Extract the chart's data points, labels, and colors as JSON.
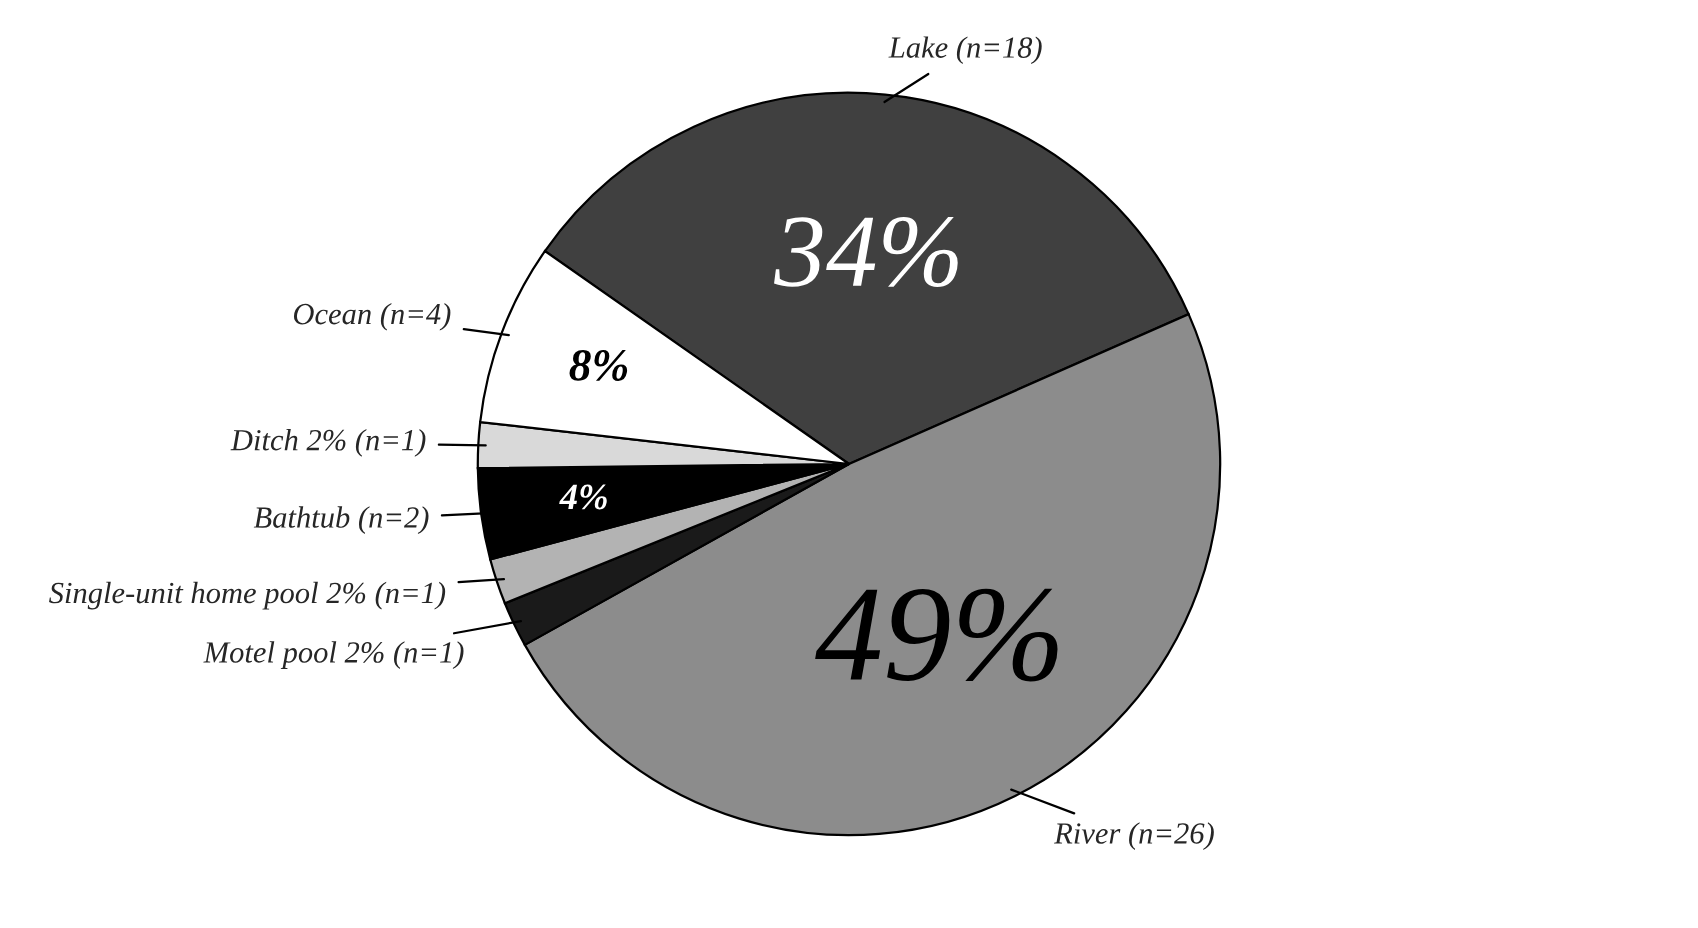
{
  "chart_data": {
    "type": "pie",
    "categories": [
      "Lake (n=18)",
      "River (n=26)",
      "Motel pool 2% (n=1)",
      "Single-unit home pool 2% (n=1)",
      "Bathtub (n=2)",
      "Ditch 2% (n=1)",
      "Ocean (n=4)"
    ],
    "values": [
      34,
      49,
      2,
      2,
      4,
      2,
      8
    ],
    "value_labels": [
      "34%",
      "49%",
      null,
      null,
      "4%",
      null,
      "8%"
    ],
    "colors": [
      "#404040",
      "#8c8c8c",
      "#1a1a1a",
      "#b3b3b3",
      "#000000",
      "#d9d9d9",
      "#ffffff"
    ]
  }
}
